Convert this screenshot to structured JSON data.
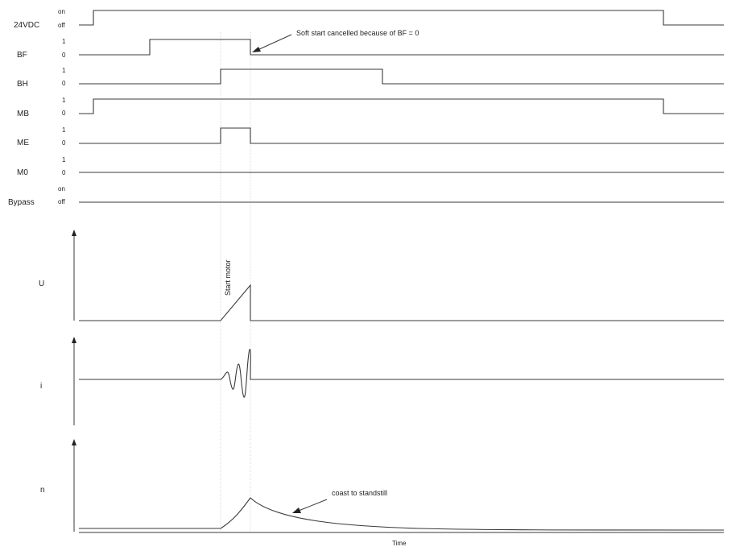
{
  "timing": {
    "rows": [
      {
        "name": "24VDC",
        "high_label": "on",
        "low_label": "off"
      },
      {
        "name": "BF",
        "high_label": "1",
        "low_label": "0"
      },
      {
        "name": "BH",
        "high_label": "1",
        "low_label": "0"
      },
      {
        "name": "MB",
        "high_label": "1",
        "low_label": "0"
      },
      {
        "name": "ME",
        "high_label": "1",
        "low_label": "0"
      },
      {
        "name": "M0",
        "high_label": "1",
        "low_label": "0"
      },
      {
        "name": "Bypass",
        "high_label": "on",
        "low_label": "off"
      }
    ]
  },
  "analog": {
    "u_label": "U",
    "i_label": "i",
    "n_label": "n",
    "time_label": "Time"
  },
  "annotations": {
    "soft_start_note": "Soft start cancelled because of BF = 0",
    "start_motor": "Start motor",
    "coast": "coast to standstill"
  },
  "colors": {
    "line": "#3a3a3a",
    "text": "#222222",
    "guide": "#c9c9c9"
  }
}
